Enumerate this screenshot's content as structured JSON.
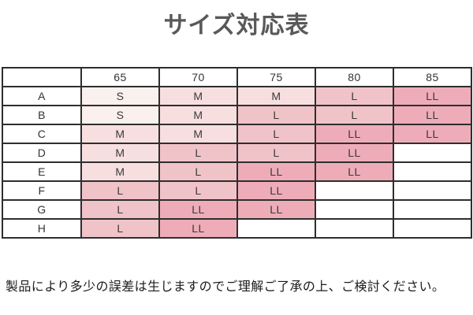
{
  "title": "サイズ対応表",
  "note": "製品により多少の誤差は生じますのでご理解ご了承の上、ご検討ください。",
  "chart_data": {
    "type": "table",
    "title": "サイズ対応表",
    "column_headers": [
      "",
      "65",
      "70",
      "75",
      "80",
      "85"
    ],
    "row_labels": [
      "A",
      "B",
      "C",
      "D",
      "E",
      "F",
      "G",
      "H"
    ],
    "rows": [
      [
        "S",
        "M",
        "M",
        "L",
        "LL"
      ],
      [
        "S",
        "M",
        "L",
        "L",
        "LL"
      ],
      [
        "M",
        "M",
        "L",
        "LL",
        "LL"
      ],
      [
        "M",
        "L",
        "L",
        "LL",
        ""
      ],
      [
        "M",
        "L",
        "LL",
        "LL",
        ""
      ],
      [
        "L",
        "L",
        "LL",
        "",
        ""
      ],
      [
        "L",
        "LL",
        "LL",
        "",
        ""
      ],
      [
        "L",
        "LL",
        "",
        "",
        ""
      ]
    ],
    "legend": "Cell shading deepens with size: S lightest pink, LL darkest pink; empty cells are white"
  },
  "colors": {
    "title_text": "#595959",
    "note_text": "#1c1c1c",
    "table_border": "#2e2e2e",
    "cell_text": "#3a3a3a",
    "size_S": "#faf0ee",
    "size_M": "#f7dfe0",
    "size_L": "#f0c3c9",
    "size_LL": "#eeacb9",
    "empty_cell": "#ffffff"
  }
}
